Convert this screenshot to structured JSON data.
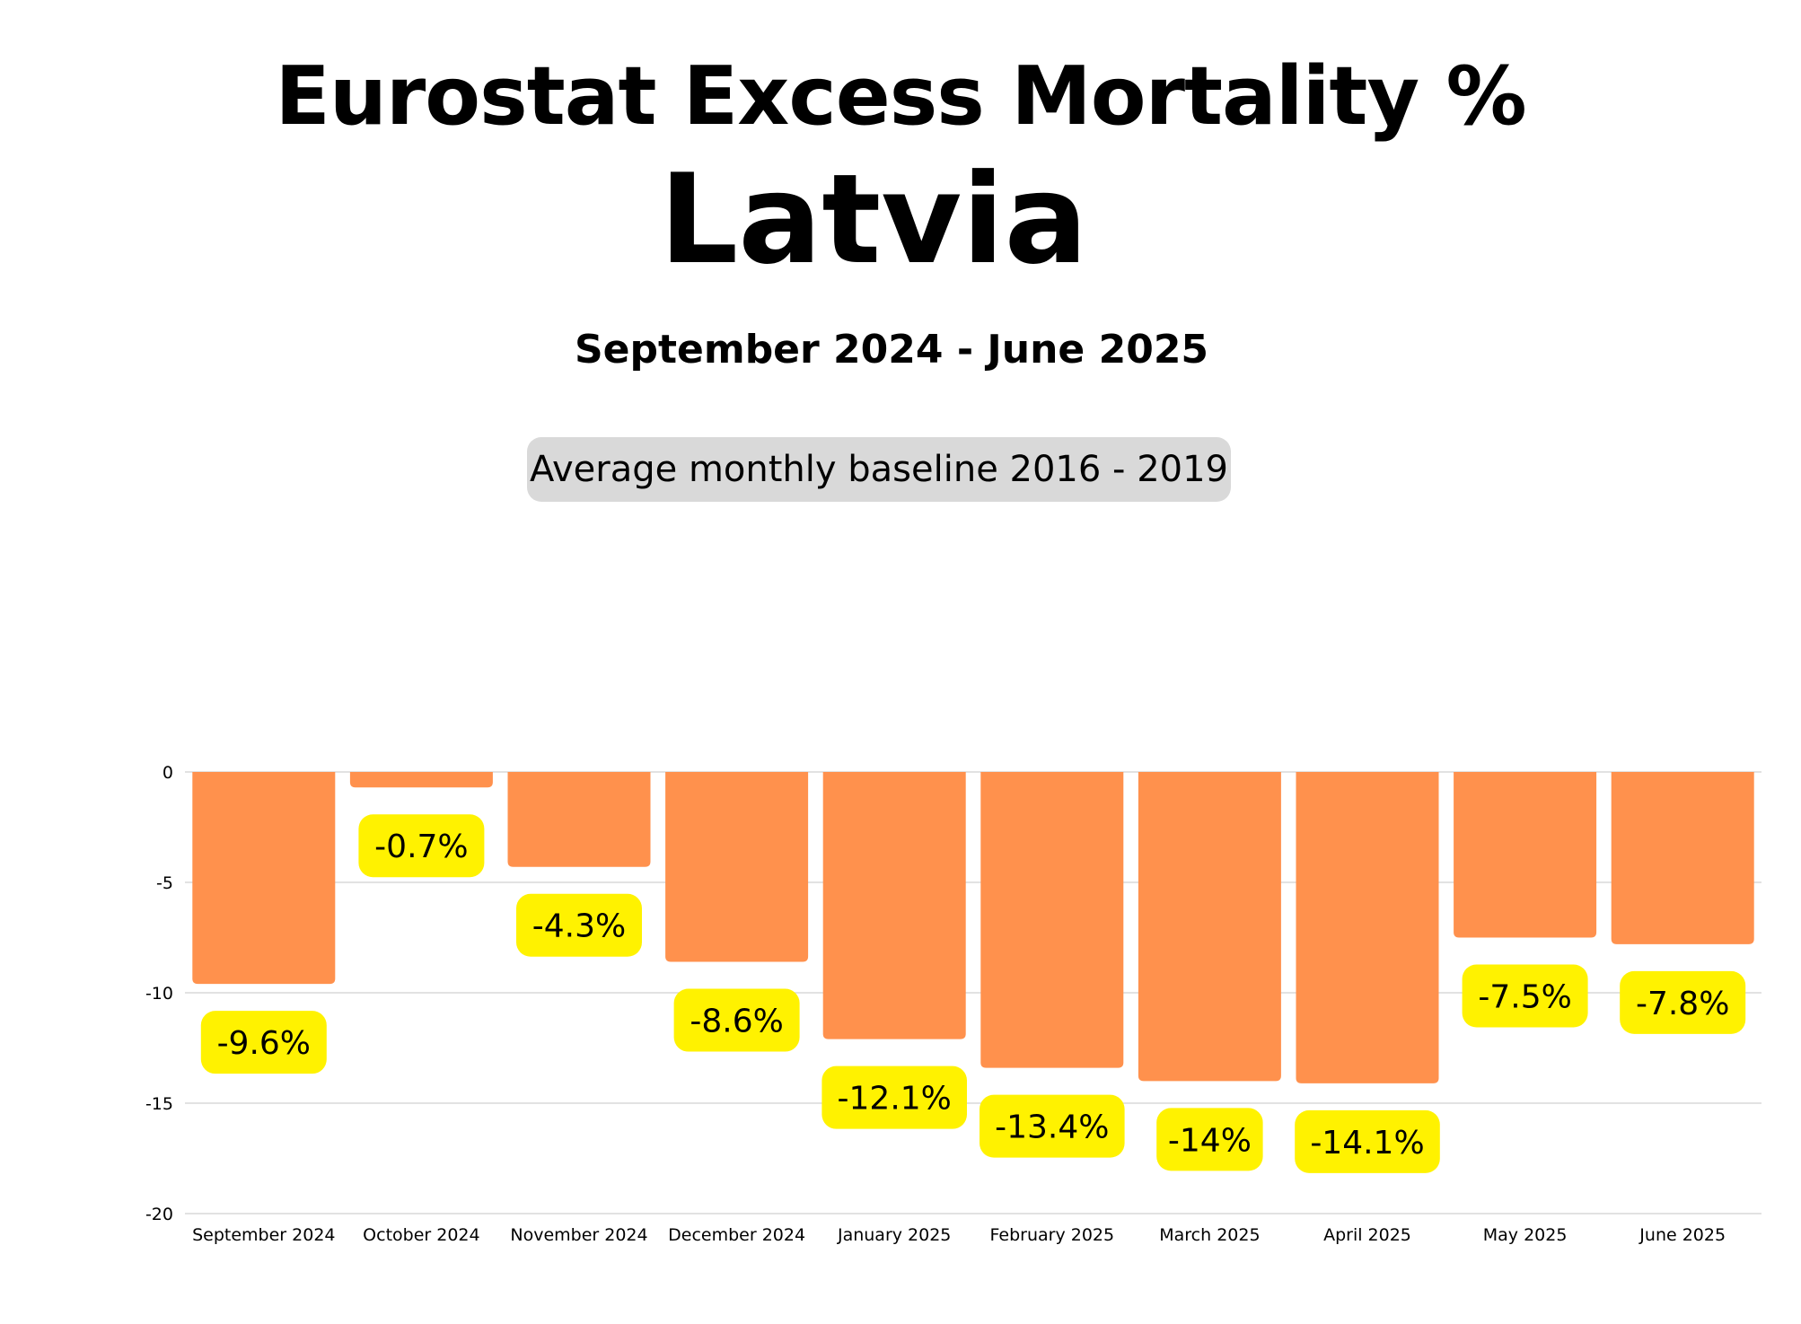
{
  "header": {
    "title": "Eurostat Excess Mortality %",
    "country": "Latvia",
    "date_range": "September 2024 - June 2025",
    "baseline_note": "Average monthly baseline 2016 - 2019"
  },
  "colors": {
    "bar": "#ff914d",
    "label_badge": "#fff200",
    "baseline_pill": "#d9d9d9",
    "gridline": "#d9d9d9"
  },
  "chart_data": {
    "type": "bar",
    "categories": [
      "September 2024",
      "October 2024",
      "November 2024",
      "December 2024",
      "January 2025",
      "February 2025",
      "March 2025",
      "April 2025",
      "May 2025",
      "June 2025"
    ],
    "values": [
      -9.6,
      -0.7,
      -4.3,
      -8.6,
      -12.1,
      -13.4,
      -14.0,
      -14.1,
      -7.5,
      -7.8
    ],
    "data_labels": [
      "-9.6%",
      "-0.7%",
      "-4.3%",
      "-8.6%",
      "-12.1%",
      "-13.4%",
      "-14%",
      "-14.1%",
      "-7.5%",
      "-7.8%"
    ],
    "yticks": [
      0,
      -5,
      -10,
      -15,
      -20
    ],
    "ylim": [
      -20,
      0
    ],
    "grid": true,
    "legend": "none"
  }
}
